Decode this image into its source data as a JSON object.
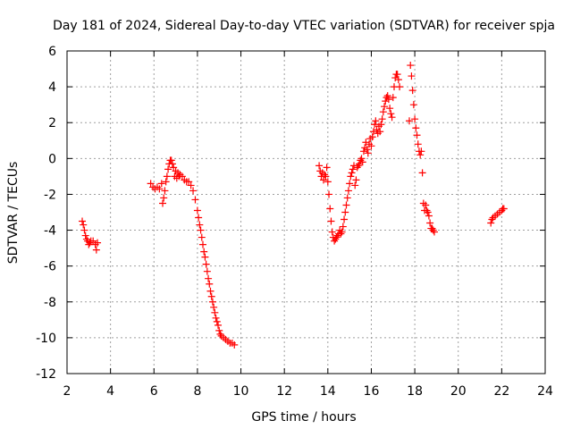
{
  "chart_data": {
    "type": "scatter",
    "title": "Day 181 of 2024, Sidereal Day-to-day VTEC variation (SDTVAR) for receiver spja",
    "xlabel": "GPS time / hours",
    "ylabel": "SDTVAR / TECUs",
    "xlim": [
      2,
      24
    ],
    "ylim": [
      -12,
      6
    ],
    "xticks": [
      "2",
      "4",
      "6",
      "8",
      "10",
      "12",
      "14",
      "16",
      "18",
      "20",
      "22",
      "24"
    ],
    "yticks": [
      "-12",
      "-10",
      "-8",
      "-6",
      "-4",
      "-2",
      "0",
      "2",
      "4",
      "6"
    ],
    "grid": true,
    "marker": "+",
    "color": "#ff0000",
    "series": [
      {
        "name": "SDTVAR",
        "points": [
          [
            2.7,
            -3.5
          ],
          [
            2.75,
            -3.7
          ],
          [
            2.8,
            -4.0
          ],
          [
            2.85,
            -4.3
          ],
          [
            2.9,
            -4.5
          ],
          [
            2.95,
            -4.6
          ],
          [
            3.0,
            -4.8
          ],
          [
            3.05,
            -4.7
          ],
          [
            3.1,
            -4.6
          ],
          [
            3.2,
            -4.6
          ],
          [
            3.3,
            -4.8
          ],
          [
            3.35,
            -5.1
          ],
          [
            3.4,
            -4.7
          ],
          [
            5.85,
            -1.4
          ],
          [
            5.95,
            -1.6
          ],
          [
            6.05,
            -1.7
          ],
          [
            6.15,
            -1.6
          ],
          [
            6.25,
            -1.7
          ],
          [
            6.35,
            -1.4
          ],
          [
            6.4,
            -2.5
          ],
          [
            6.45,
            -2.2
          ],
          [
            6.5,
            -1.8
          ],
          [
            6.55,
            -1.3
          ],
          [
            6.6,
            -1.0
          ],
          [
            6.65,
            -0.6
          ],
          [
            6.7,
            -0.3
          ],
          [
            6.75,
            -0.1
          ],
          [
            6.8,
            -0.1
          ],
          [
            6.85,
            -0.3
          ],
          [
            6.9,
            -0.5
          ],
          [
            6.95,
            -1.0
          ],
          [
            7.0,
            -0.7
          ],
          [
            7.05,
            -1.1
          ],
          [
            7.1,
            -0.8
          ],
          [
            7.15,
            -1.0
          ],
          [
            7.2,
            -0.9
          ],
          [
            7.3,
            -1.0
          ],
          [
            7.4,
            -1.2
          ],
          [
            7.5,
            -1.3
          ],
          [
            7.6,
            -1.3
          ],
          [
            7.7,
            -1.5
          ],
          [
            7.8,
            -1.8
          ],
          [
            7.9,
            -2.3
          ],
          [
            8.0,
            -2.9
          ],
          [
            8.05,
            -3.3
          ],
          [
            8.1,
            -3.7
          ],
          [
            8.15,
            -4.0
          ],
          [
            8.2,
            -4.4
          ],
          [
            8.25,
            -4.8
          ],
          [
            8.3,
            -5.2
          ],
          [
            8.35,
            -5.5
          ],
          [
            8.4,
            -5.9
          ],
          [
            8.45,
            -6.3
          ],
          [
            8.5,
            -6.7
          ],
          [
            8.55,
            -7.0
          ],
          [
            8.6,
            -7.4
          ],
          [
            8.65,
            -7.7
          ],
          [
            8.7,
            -8.0
          ],
          [
            8.75,
            -8.3
          ],
          [
            8.8,
            -8.6
          ],
          [
            8.85,
            -8.9
          ],
          [
            8.9,
            -9.1
          ],
          [
            8.95,
            -9.3
          ],
          [
            9.0,
            -9.6
          ],
          [
            9.05,
            -9.8
          ],
          [
            9.1,
            -9.9
          ],
          [
            9.2,
            -10.0
          ],
          [
            9.3,
            -10.1
          ],
          [
            9.4,
            -10.2
          ],
          [
            9.5,
            -10.3
          ],
          [
            9.6,
            -10.3
          ],
          [
            9.7,
            -10.4
          ],
          [
            13.6,
            -0.4
          ],
          [
            13.65,
            -0.7
          ],
          [
            13.7,
            -1.0
          ],
          [
            13.75,
            -0.8
          ],
          [
            13.8,
            -1.2
          ],
          [
            13.85,
            -0.9
          ],
          [
            13.9,
            -1.0
          ],
          [
            13.95,
            -0.5
          ],
          [
            14.0,
            -1.3
          ],
          [
            14.05,
            -2.0
          ],
          [
            14.1,
            -2.8
          ],
          [
            14.15,
            -3.5
          ],
          [
            14.2,
            -4.1
          ],
          [
            14.25,
            -4.4
          ],
          [
            14.3,
            -4.6
          ],
          [
            14.35,
            -4.5
          ],
          [
            14.4,
            -4.4
          ],
          [
            14.45,
            -4.3
          ],
          [
            14.5,
            -4.2
          ],
          [
            14.55,
            -4.0
          ],
          [
            14.6,
            -4.2
          ],
          [
            14.65,
            -4.1
          ],
          [
            14.7,
            -3.8
          ],
          [
            14.75,
            -3.4
          ],
          [
            14.8,
            -3.0
          ],
          [
            14.85,
            -2.6
          ],
          [
            14.9,
            -2.2
          ],
          [
            14.95,
            -1.8
          ],
          [
            15.0,
            -1.4
          ],
          [
            15.05,
            -1.0
          ],
          [
            15.1,
            -0.8
          ],
          [
            15.15,
            -0.6
          ],
          [
            15.2,
            -0.4
          ],
          [
            15.25,
            -1.5
          ],
          [
            15.3,
            -1.2
          ],
          [
            15.35,
            -0.5
          ],
          [
            15.4,
            -0.4
          ],
          [
            15.45,
            -0.3
          ],
          [
            15.5,
            -0.1
          ],
          [
            15.55,
            0.0
          ],
          [
            15.6,
            -0.2
          ],
          [
            15.65,
            0.4
          ],
          [
            15.7,
            0.6
          ],
          [
            15.75,
            0.9
          ],
          [
            15.8,
            0.5
          ],
          [
            15.85,
            0.3
          ],
          [
            15.9,
            0.8
          ],
          [
            15.95,
            1.1
          ],
          [
            16.0,
            0.7
          ],
          [
            16.05,
            1.2
          ],
          [
            16.1,
            1.5
          ],
          [
            16.15,
            1.9
          ],
          [
            16.2,
            2.1
          ],
          [
            16.25,
            1.6
          ],
          [
            16.3,
            1.4
          ],
          [
            16.35,
            1.8
          ],
          [
            16.4,
            1.5
          ],
          [
            16.45,
            1.9
          ],
          [
            16.5,
            2.2
          ],
          [
            16.55,
            2.6
          ],
          [
            16.6,
            2.9
          ],
          [
            16.65,
            3.2
          ],
          [
            16.7,
            3.4
          ],
          [
            16.75,
            3.5
          ],
          [
            16.8,
            3.3
          ],
          [
            16.85,
            2.8
          ],
          [
            16.9,
            2.5
          ],
          [
            16.95,
            2.3
          ],
          [
            17.0,
            3.4
          ],
          [
            17.05,
            4.0
          ],
          [
            17.1,
            4.5
          ],
          [
            17.15,
            4.7
          ],
          [
            17.2,
            4.7
          ],
          [
            17.25,
            4.4
          ],
          [
            17.3,
            4.0
          ],
          [
            17.75,
            2.1
          ],
          [
            17.8,
            5.2
          ],
          [
            17.85,
            4.6
          ],
          [
            17.9,
            3.8
          ],
          [
            17.95,
            3.0
          ],
          [
            18.0,
            2.2
          ],
          [
            18.05,
            1.7
          ],
          [
            18.1,
            1.3
          ],
          [
            18.15,
            0.8
          ],
          [
            18.2,
            0.4
          ],
          [
            18.25,
            0.2
          ],
          [
            18.3,
            0.4
          ],
          [
            18.35,
            -0.8
          ],
          [
            18.4,
            -2.5
          ],
          [
            18.45,
            -2.9
          ],
          [
            18.5,
            -2.6
          ],
          [
            18.55,
            -2.9
          ],
          [
            18.6,
            -3.0
          ],
          [
            18.65,
            -3.2
          ],
          [
            18.7,
            -3.6
          ],
          [
            18.75,
            -3.9
          ],
          [
            18.8,
            -3.9
          ],
          [
            18.85,
            -4.0
          ],
          [
            18.9,
            -4.1
          ],
          [
            21.5,
            -3.6
          ],
          [
            21.55,
            -3.4
          ],
          [
            21.6,
            -3.3
          ],
          [
            21.7,
            -3.2
          ],
          [
            21.8,
            -3.1
          ],
          [
            21.9,
            -3.0
          ],
          [
            22.0,
            -2.9
          ],
          [
            22.05,
            -2.8
          ],
          [
            22.1,
            -2.8
          ]
        ]
      }
    ]
  }
}
